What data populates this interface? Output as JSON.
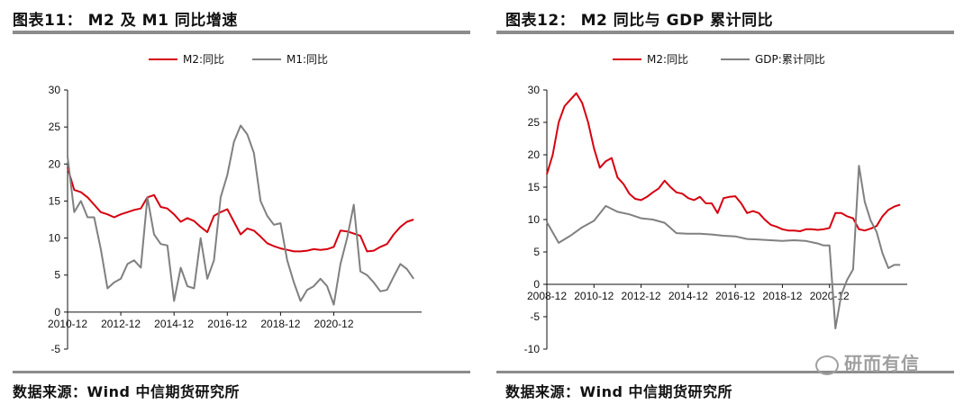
{
  "left": {
    "title": "图表11： M2 及 M1 同比增速",
    "source": "数据来源：Wind 中信期货研究所",
    "chart_data": {
      "type": "line",
      "x_tick_labels": [
        "2010-12",
        "2012-12",
        "2014-12",
        "2016-12",
        "2018-12",
        "2020-12"
      ],
      "ylim": [
        -5,
        30
      ],
      "y_ticks": [
        -5,
        0,
        5,
        10,
        15,
        20,
        25,
        30
      ],
      "legend_position": "top-center",
      "series": [
        {
          "name": "M2:同比",
          "color": "#d7000f",
          "x": [
            2010.0,
            2010.25,
            2010.5,
            2010.75,
            2011.0,
            2011.25,
            2011.5,
            2011.75,
            2012.0,
            2012.25,
            2012.5,
            2012.75,
            2013.0,
            2013.25,
            2013.5,
            2013.75,
            2014.0,
            2014.25,
            2014.5,
            2014.75,
            2015.0,
            2015.25,
            2015.5,
            2015.75,
            2016.0,
            2016.25,
            2016.5,
            2016.75,
            2017.0,
            2017.25,
            2017.5,
            2017.75,
            2018.0,
            2018.25,
            2018.5,
            2018.75,
            2019.0,
            2019.25,
            2019.5,
            2019.75,
            2020.0,
            2020.25,
            2020.5,
            2020.75,
            2021.0,
            2021.25,
            2021.5,
            2021.75,
            2022.0,
            2022.25,
            2022.5,
            2022.75,
            2023.0
          ],
          "values": [
            19.5,
            16.5,
            16.2,
            15.5,
            14.5,
            13.5,
            13.2,
            12.8,
            13.2,
            13.5,
            13.8,
            14.0,
            15.5,
            15.8,
            14.2,
            14.0,
            13.2,
            12.2,
            12.7,
            12.3,
            11.5,
            10.8,
            13.0,
            13.5,
            13.9,
            12.2,
            10.5,
            11.3,
            11.0,
            10.2,
            9.3,
            8.9,
            8.6,
            8.4,
            8.2,
            8.2,
            8.3,
            8.5,
            8.4,
            8.5,
            8.8,
            11.0,
            10.9,
            10.6,
            10.3,
            8.2,
            8.3,
            8.8,
            9.2,
            10.5,
            11.5,
            12.2,
            12.5
          ]
        },
        {
          "name": "M1:同比",
          "color": "#808080",
          "x": [
            2010.0,
            2010.25,
            2010.5,
            2010.75,
            2011.0,
            2011.25,
            2011.5,
            2011.75,
            2012.0,
            2012.25,
            2012.5,
            2012.75,
            2013.0,
            2013.25,
            2013.5,
            2013.75,
            2014.0,
            2014.25,
            2014.5,
            2014.75,
            2015.0,
            2015.25,
            2015.5,
            2015.75,
            2016.0,
            2016.25,
            2016.5,
            2016.75,
            2017.0,
            2017.25,
            2017.5,
            2017.75,
            2018.0,
            2018.25,
            2018.5,
            2018.75,
            2019.0,
            2019.25,
            2019.5,
            2019.75,
            2020.0,
            2020.25,
            2020.5,
            2020.75,
            2021.0,
            2021.25,
            2021.5,
            2021.75,
            2022.0,
            2022.25,
            2022.5,
            2022.75,
            2023.0
          ],
          "values": [
            21.0,
            13.5,
            15.0,
            12.8,
            12.8,
            8.5,
            3.2,
            4.0,
            4.5,
            6.5,
            7.0,
            6.0,
            15.5,
            10.5,
            9.2,
            9.0,
            1.5,
            6.0,
            3.5,
            3.2,
            10.0,
            4.5,
            7.0,
            15.5,
            18.5,
            23.0,
            25.2,
            24.0,
            21.5,
            15.0,
            13.0,
            11.8,
            12.0,
            7.0,
            4.0,
            1.5,
            3.0,
            3.5,
            4.5,
            3.5,
            1.0,
            6.5,
            10.0,
            14.5,
            5.5,
            5.0,
            4.0,
            2.8,
            3.0,
            4.8,
            6.5,
            5.8,
            4.5
          ]
        }
      ]
    }
  },
  "right": {
    "title": "图表12： M2 同比与 GDP 累计同比",
    "source": "数据来源：Wind 中信期货研究所",
    "chart_data": {
      "type": "line",
      "x_tick_labels": [
        "2008-12",
        "2010-12",
        "2012-12",
        "2014-12",
        "2016-12",
        "2018-12",
        "2020-12"
      ],
      "ylim": [
        -10,
        30
      ],
      "y_ticks": [
        -10,
        -5,
        0,
        5,
        10,
        15,
        20,
        25,
        30
      ],
      "legend_position": "top-center",
      "series": [
        {
          "name": "M2:同比",
          "color": "#d7000f",
          "x": [
            2008.0,
            2008.25,
            2008.5,
            2008.75,
            2009.0,
            2009.25,
            2009.5,
            2009.75,
            2010.0,
            2010.25,
            2010.5,
            2010.75,
            2011.0,
            2011.25,
            2011.5,
            2011.75,
            2012.0,
            2012.25,
            2012.5,
            2012.75,
            2013.0,
            2013.25,
            2013.5,
            2013.75,
            2014.0,
            2014.25,
            2014.5,
            2014.75,
            2015.0,
            2015.25,
            2015.5,
            2015.75,
            2016.0,
            2016.25,
            2016.5,
            2016.75,
            2017.0,
            2017.25,
            2017.5,
            2017.75,
            2018.0,
            2018.25,
            2018.5,
            2018.75,
            2019.0,
            2019.25,
            2019.5,
            2019.75,
            2020.0,
            2020.25,
            2020.5,
            2020.75,
            2021.0,
            2021.25,
            2021.5,
            2021.75,
            2022.0,
            2022.25,
            2022.5,
            2022.75,
            2023.0
          ],
          "values": [
            17.0,
            20.0,
            25.0,
            27.5,
            28.5,
            29.5,
            28.0,
            25.0,
            21.0,
            18.0,
            19.0,
            19.5,
            16.5,
            15.5,
            14.0,
            13.2,
            13.0,
            13.5,
            14.2,
            14.8,
            16.0,
            15.0,
            14.2,
            14.0,
            13.3,
            13.0,
            13.5,
            12.5,
            12.5,
            11.0,
            13.3,
            13.5,
            13.6,
            12.5,
            11.0,
            11.3,
            11.0,
            10.0,
            9.2,
            8.9,
            8.5,
            8.3,
            8.3,
            8.2,
            8.5,
            8.5,
            8.4,
            8.5,
            8.7,
            11.0,
            11.0,
            10.5,
            10.2,
            8.5,
            8.3,
            8.6,
            9.0,
            10.5,
            11.5,
            12.0,
            12.3
          ]
        },
        {
          "name": "GDP:累计同比",
          "color": "#808080",
          "x": [
            2008.0,
            2008.5,
            2009.0,
            2009.5,
            2010.0,
            2010.5,
            2011.0,
            2011.5,
            2012.0,
            2012.5,
            2013.0,
            2013.5,
            2014.0,
            2014.5,
            2015.0,
            2015.5,
            2016.0,
            2016.5,
            2017.0,
            2017.5,
            2018.0,
            2018.5,
            2019.0,
            2019.5,
            2019.75,
            2020.0,
            2020.25,
            2020.5,
            2020.75,
            2021.0,
            2021.25,
            2021.5,
            2021.75,
            2022.0,
            2022.25,
            2022.5,
            2022.75,
            2023.0
          ],
          "values": [
            9.6,
            6.4,
            7.5,
            8.8,
            9.8,
            12.1,
            11.2,
            10.8,
            10.2,
            10.0,
            9.5,
            7.9,
            7.8,
            7.8,
            7.7,
            7.5,
            7.4,
            7.0,
            6.9,
            6.8,
            6.7,
            6.8,
            6.7,
            6.3,
            6.0,
            6.0,
            -6.8,
            -1.6,
            0.7,
            2.3,
            18.3,
            12.7,
            9.8,
            8.1,
            4.8,
            2.5,
            3.0,
            3.0
          ]
        }
      ]
    }
  },
  "watermark": {
    "text": "研而有信",
    "icon": "wechat-icon"
  }
}
